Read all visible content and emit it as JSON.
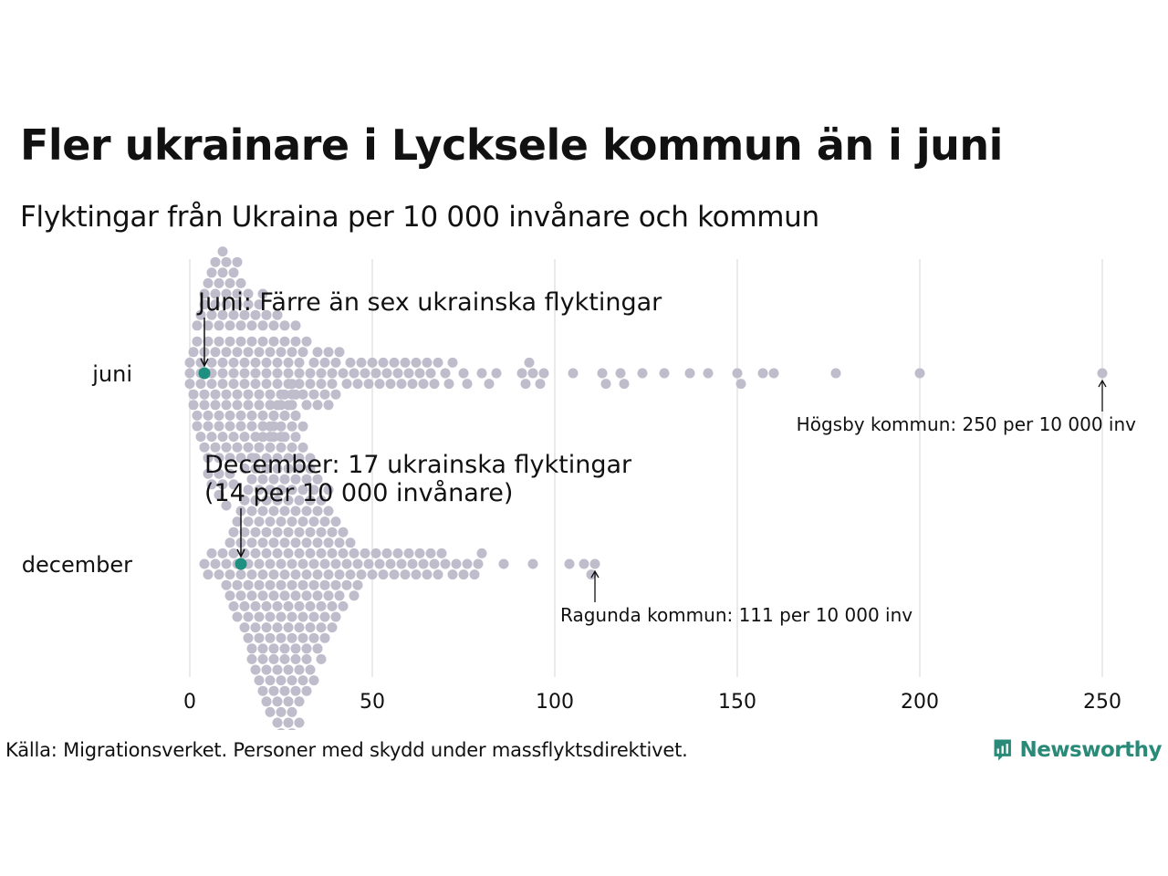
{
  "header": {
    "title": "Fler ukrainare i Lycksele kommun än i juni",
    "subtitle": "Flyktingar från Ukraina per 10 000 invånare och kommun"
  },
  "footer": {
    "source": "Källa: Migrationsverket. Personer med skydd under massflyktsdirektivet.",
    "brand": "Newsworthy"
  },
  "colors": {
    "dot": "#bfbccb",
    "highlight": "#1f8f7f",
    "grid": "#d4d4d4",
    "text": "#111111",
    "brand": "#2a8a78"
  },
  "chart_data": {
    "type": "scatter",
    "subtype": "beeswarm",
    "xlim": [
      0,
      250
    ],
    "x_ticks": [
      0,
      50,
      100,
      150,
      200,
      250
    ],
    "grid": "vertical",
    "categories": [
      "juni",
      "december"
    ],
    "series": [
      {
        "category": "juni",
        "values": [
          0,
          0,
          0,
          1,
          1,
          1,
          2,
          2,
          2,
          2,
          3,
          3,
          3,
          3,
          3,
          4,
          4,
          4,
          4,
          4,
          4,
          5,
          5,
          5,
          5,
          5,
          5,
          5,
          6,
          6,
          6,
          6,
          6,
          6,
          6,
          7,
          7,
          7,
          7,
          7,
          7,
          7,
          8,
          8,
          8,
          8,
          8,
          8,
          8,
          8,
          9,
          9,
          9,
          9,
          9,
          9,
          9,
          9,
          10,
          10,
          10,
          10,
          10,
          10,
          10,
          10,
          11,
          11,
          11,
          11,
          11,
          11,
          11,
          12,
          12,
          12,
          12,
          12,
          12,
          12,
          13,
          13,
          13,
          13,
          13,
          13,
          13,
          14,
          14,
          14,
          14,
          14,
          14,
          15,
          15,
          15,
          15,
          15,
          15,
          16,
          16,
          16,
          16,
          16,
          16,
          17,
          17,
          17,
          17,
          17,
          18,
          18,
          18,
          18,
          18,
          19,
          19,
          19,
          19,
          19,
          20,
          20,
          20,
          20,
          20,
          21,
          21,
          21,
          21,
          22,
          22,
          22,
          22,
          23,
          23,
          23,
          23,
          24,
          24,
          24,
          24,
          25,
          25,
          25,
          25,
          26,
          26,
          26,
          27,
          27,
          27,
          28,
          28,
          28,
          29,
          29,
          29,
          30,
          30,
          30,
          31,
          31,
          32,
          32,
          33,
          33,
          34,
          34,
          35,
          35,
          36,
          36,
          37,
          37,
          38,
          38,
          39,
          39,
          40,
          40,
          41,
          42,
          43,
          44,
          45,
          46,
          47,
          48,
          49,
          50,
          51,
          52,
          53,
          54,
          55,
          56,
          57,
          58,
          59,
          60,
          61,
          62,
          63,
          64,
          65,
          66,
          67,
          68,
          70,
          71,
          72,
          75,
          76,
          80,
          82,
          84,
          91,
          92,
          93,
          94,
          96,
          97,
          105,
          113,
          114,
          118,
          119,
          124,
          130,
          137,
          142,
          150,
          151,
          157,
          160,
          177,
          200,
          250
        ],
        "highlight": {
          "value": 4,
          "label": "Juni: Färre än sex ukrainska flyktingar"
        },
        "annotation": {
          "value": 250,
          "label": "Högsby kommun: 250 per 10 000 inv"
        }
      },
      {
        "category": "december",
        "values": [
          4,
          5,
          6,
          7,
          8,
          9,
          10,
          10,
          11,
          11,
          11,
          12,
          12,
          12,
          13,
          13,
          13,
          13,
          14,
          14,
          14,
          14,
          15,
          15,
          15,
          15,
          15,
          16,
          16,
          16,
          16,
          16,
          16,
          17,
          17,
          17,
          17,
          17,
          17,
          17,
          18,
          18,
          18,
          18,
          18,
          18,
          18,
          18,
          19,
          19,
          19,
          19,
          19,
          19,
          19,
          19,
          20,
          20,
          20,
          20,
          20,
          20,
          20,
          20,
          20,
          21,
          21,
          21,
          21,
          21,
          21,
          21,
          21,
          21,
          22,
          22,
          22,
          22,
          22,
          22,
          22,
          22,
          22,
          22,
          23,
          23,
          23,
          23,
          23,
          23,
          23,
          23,
          23,
          23,
          24,
          24,
          24,
          24,
          24,
          24,
          24,
          24,
          24,
          24,
          24,
          25,
          25,
          25,
          25,
          25,
          25,
          25,
          25,
          25,
          25,
          25,
          26,
          26,
          26,
          26,
          26,
          26,
          26,
          26,
          26,
          26,
          26,
          27,
          27,
          27,
          27,
          27,
          27,
          27,
          27,
          27,
          27,
          27,
          27,
          28,
          28,
          28,
          28,
          28,
          28,
          28,
          28,
          28,
          28,
          28,
          28,
          29,
          29,
          29,
          29,
          29,
          29,
          29,
          29,
          29,
          29,
          29,
          30,
          30,
          30,
          30,
          30,
          30,
          30,
          30,
          30,
          30,
          31,
          31,
          31,
          31,
          31,
          31,
          31,
          31,
          31,
          32,
          32,
          32,
          32,
          32,
          32,
          32,
          32,
          33,
          33,
          33,
          33,
          33,
          33,
          33,
          33,
          34,
          34,
          34,
          34,
          34,
          34,
          34,
          35,
          35,
          35,
          35,
          35,
          35,
          36,
          36,
          36,
          36,
          36,
          36,
          37,
          37,
          37,
          37,
          37,
          38,
          38,
          38,
          38,
          38,
          39,
          39,
          39,
          39,
          40,
          40,
          40,
          40,
          41,
          41,
          41,
          42,
          42,
          42,
          43,
          43,
          44,
          44,
          45,
          45,
          46,
          46,
          47,
          48,
          49,
          50,
          51,
          52,
          53,
          54,
          55,
          56,
          57,
          58,
          59,
          60,
          61,
          62,
          63,
          64,
          65,
          66,
          67,
          68,
          69,
          70,
          72,
          73,
          75,
          76,
          78,
          79,
          80,
          86,
          94,
          104,
          108,
          110,
          111
        ],
        "highlight": {
          "value": 14,
          "label_lines": [
            "December: 17 ukrainska flyktingar",
            "(14 per 10 000 invånare)"
          ]
        },
        "annotation": {
          "value": 111,
          "label": "Ragunda kommun: 111 per 10 000 inv"
        }
      }
    ]
  }
}
